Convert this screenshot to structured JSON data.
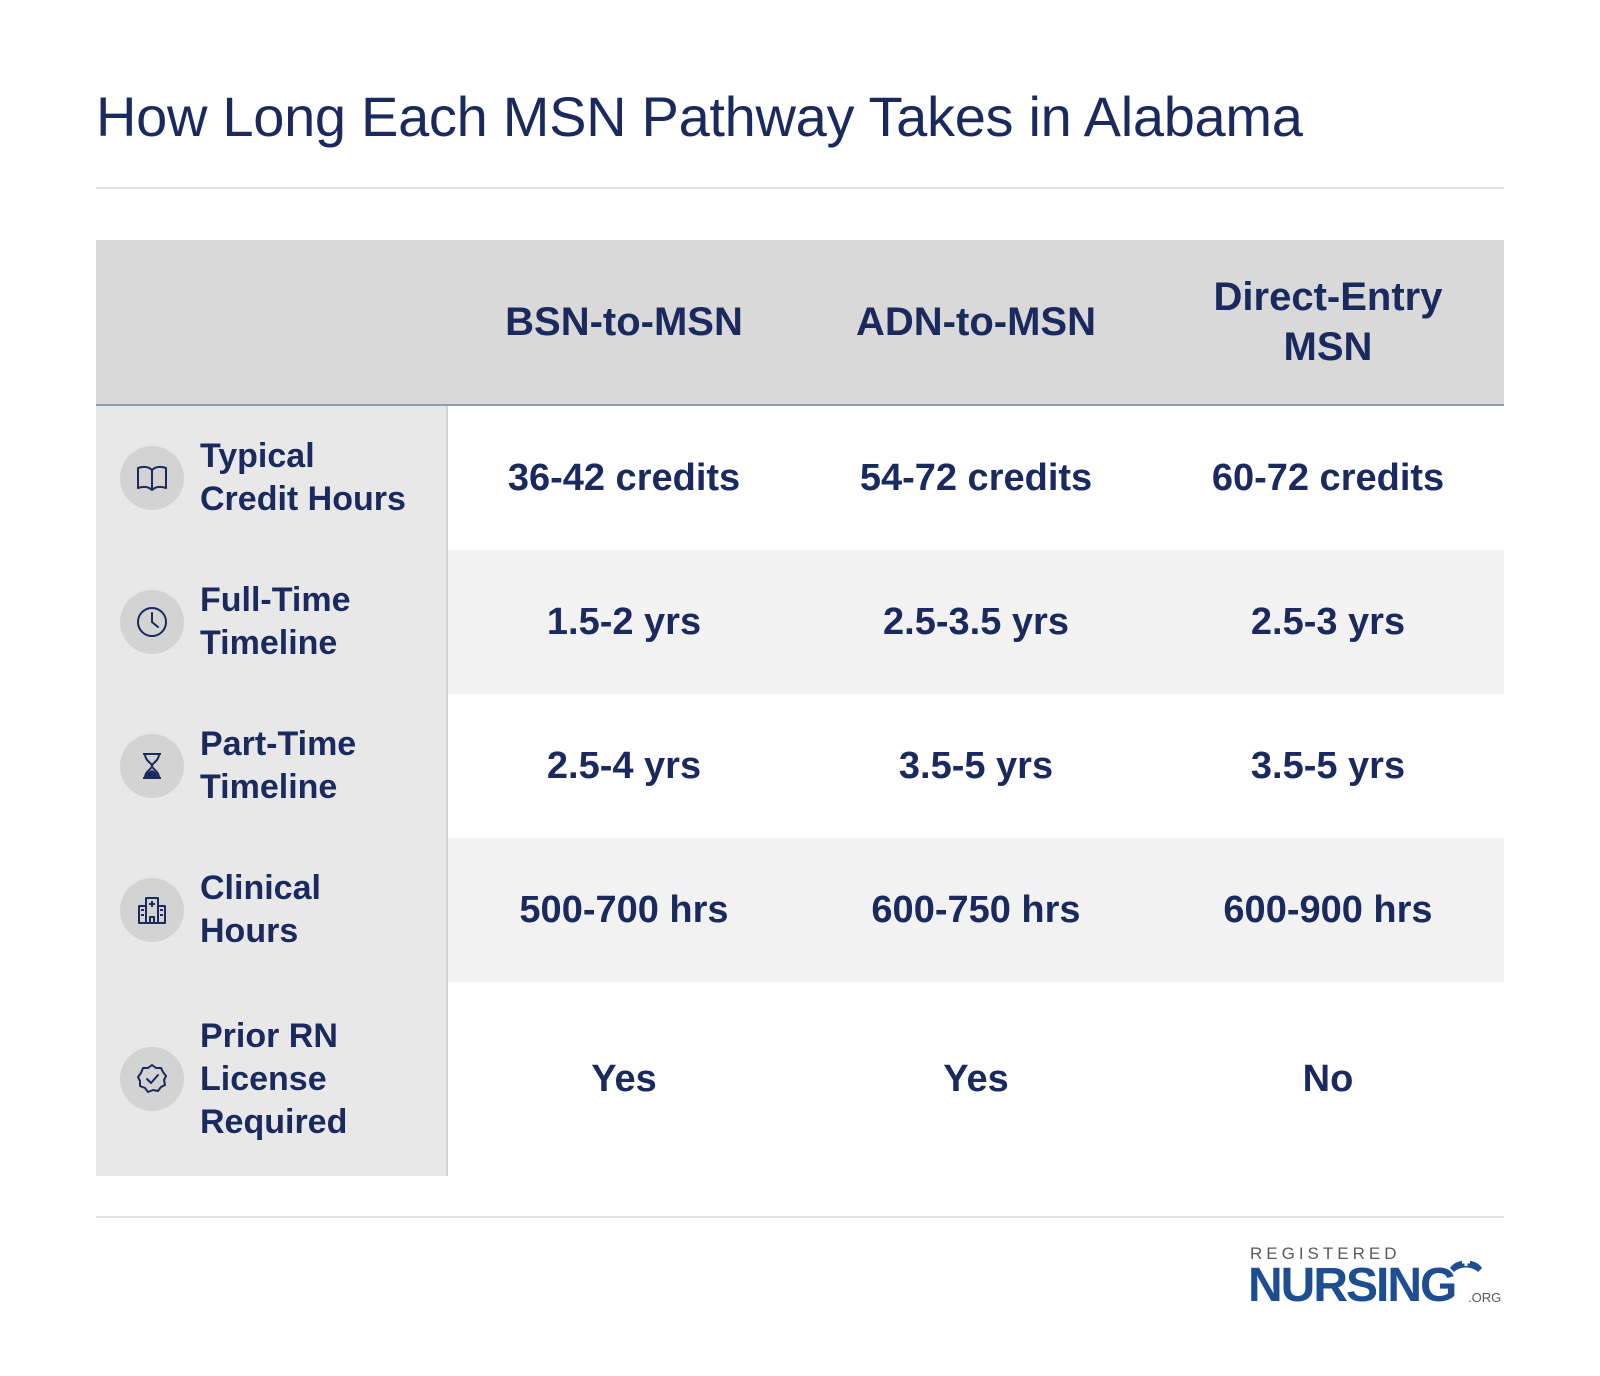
{
  "title": "How Long Each MSN Pathway Takes in Alabama",
  "table": {
    "columns": [
      "BSN-to-MSN",
      "ADN-to-MSN",
      "Direct-Entry MSN"
    ],
    "rows": [
      {
        "label": "Typical Credit Hours",
        "icon": "book-icon",
        "values": [
          "36-42 credits",
          "54-72 credits",
          "60-72 credits"
        ]
      },
      {
        "label": "Full-Time Timeline",
        "icon": "clock-icon",
        "values": [
          "1.5-2 yrs",
          "2.5-3.5 yrs",
          "2.5-3 yrs"
        ]
      },
      {
        "label": "Part-Time Timeline",
        "icon": "hourglass-icon",
        "values": [
          "2.5-4 yrs",
          "3.5-5 yrs",
          "3.5-5 yrs"
        ]
      },
      {
        "label": "Clinical Hours",
        "icon": "hospital-icon",
        "values": [
          "500-700 hrs",
          "600-750 hrs",
          "600-900 hrs"
        ]
      },
      {
        "label": "Prior RN License Required",
        "icon": "verified-badge-icon",
        "values": [
          "Yes",
          "Yes",
          "No"
        ]
      }
    ]
  },
  "logo": {
    "top": "REGISTERED",
    "main": "NURSING",
    "suffix": ".ORG"
  },
  "colors": {
    "navy": "#1a2a5e",
    "logo_blue": "#1d4e91",
    "header_bg": "#d9d9d9",
    "label_bg": "#e8e8e8",
    "alt_row": "#f2f2f2"
  }
}
